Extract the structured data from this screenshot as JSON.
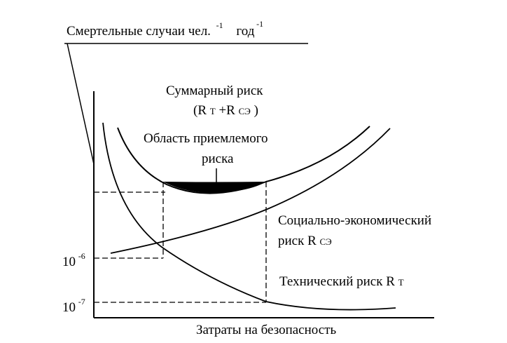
{
  "diagram": {
    "y_axis_title": {
      "text": "Смертельные случаи чел.",
      "sup1": "-1",
      "unit": "год",
      "sup2": "-1"
    },
    "x_axis_title": "Затраты на безопасность",
    "y_ticks": [
      {
        "base": "10",
        "exp": "-6"
      },
      {
        "base": "10",
        "exp": "-7"
      }
    ],
    "curves": {
      "total": {
        "line1": "Суммарный риск",
        "line2_open": "(R",
        "line2_sub1": "Т",
        "line2_plus": "+R",
        "line2_sub2": "СЭ",
        "line2_close": ")"
      },
      "acceptable_region": {
        "line1": "Область приемлемого",
        "line2": "риска"
      },
      "socio_economic": {
        "line1": "Социально-экономический",
        "line2_prefix": "риск R",
        "line2_sub": "СЭ"
      },
      "technical": {
        "prefix": "Технический риск R",
        "sub": "Т"
      }
    },
    "colors": {
      "line": "#000000",
      "fill": "#000000",
      "background": "#ffffff"
    }
  }
}
